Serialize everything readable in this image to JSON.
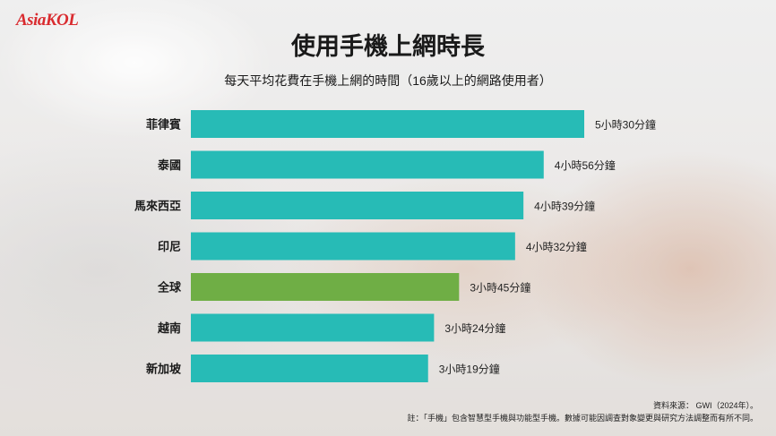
{
  "brand": {
    "logo_text": "AsiaKOL"
  },
  "title": "使用手機上網時長",
  "subtitle": "每天平均花費在手機上網的時間（16歲以上的網路使用者）",
  "source": "資料來源： GWI（2024年）。",
  "note": "註：「手機」包含智慧型手機與功能型手機。數據可能因調查對象變更與研究方法調整而有所不同。",
  "colors": {
    "bar": "#27bbb6",
    "highlight": "#6fae45"
  },
  "chart_data": {
    "type": "bar",
    "orientation": "horizontal",
    "categories": [
      "菲律賓",
      "泰國",
      "馬來西亞",
      "印尼",
      "全球",
      "越南",
      "新加坡"
    ],
    "values": [
      330,
      296,
      279,
      272,
      225,
      204,
      199
    ],
    "value_unit": "minutes",
    "data_labels": [
      "5小時30分鐘",
      "4小時56分鐘",
      "4小時39分鐘",
      "4小時32分鐘",
      "3小時45分鐘",
      "3小時24分鐘",
      "3小時19分鐘"
    ],
    "highlight_category": "全球",
    "title": "使用手機上網時長",
    "xlim": [
      0,
      330
    ],
    "grid": false
  }
}
